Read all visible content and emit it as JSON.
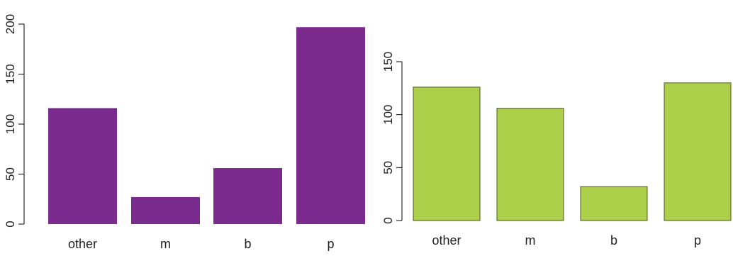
{
  "chart_data": [
    {
      "type": "bar",
      "categories": [
        "other",
        "m",
        "b",
        "p"
      ],
      "values": [
        116,
        27,
        56,
        197
      ],
      "ylim": [
        0,
        200
      ],
      "yticks": [
        0,
        50,
        100,
        150,
        200
      ],
      "grid": false,
      "color": "#7b2a8e",
      "bar_border": false
    },
    {
      "type": "bar",
      "categories": [
        "other",
        "m",
        "b",
        "p"
      ],
      "values": [
        126,
        106,
        32,
        130
      ],
      "ylim": [
        0,
        150
      ],
      "yticks": [
        0,
        50,
        100,
        150
      ],
      "grid": false,
      "color": "#add04b",
      "bar_border": true
    }
  ]
}
